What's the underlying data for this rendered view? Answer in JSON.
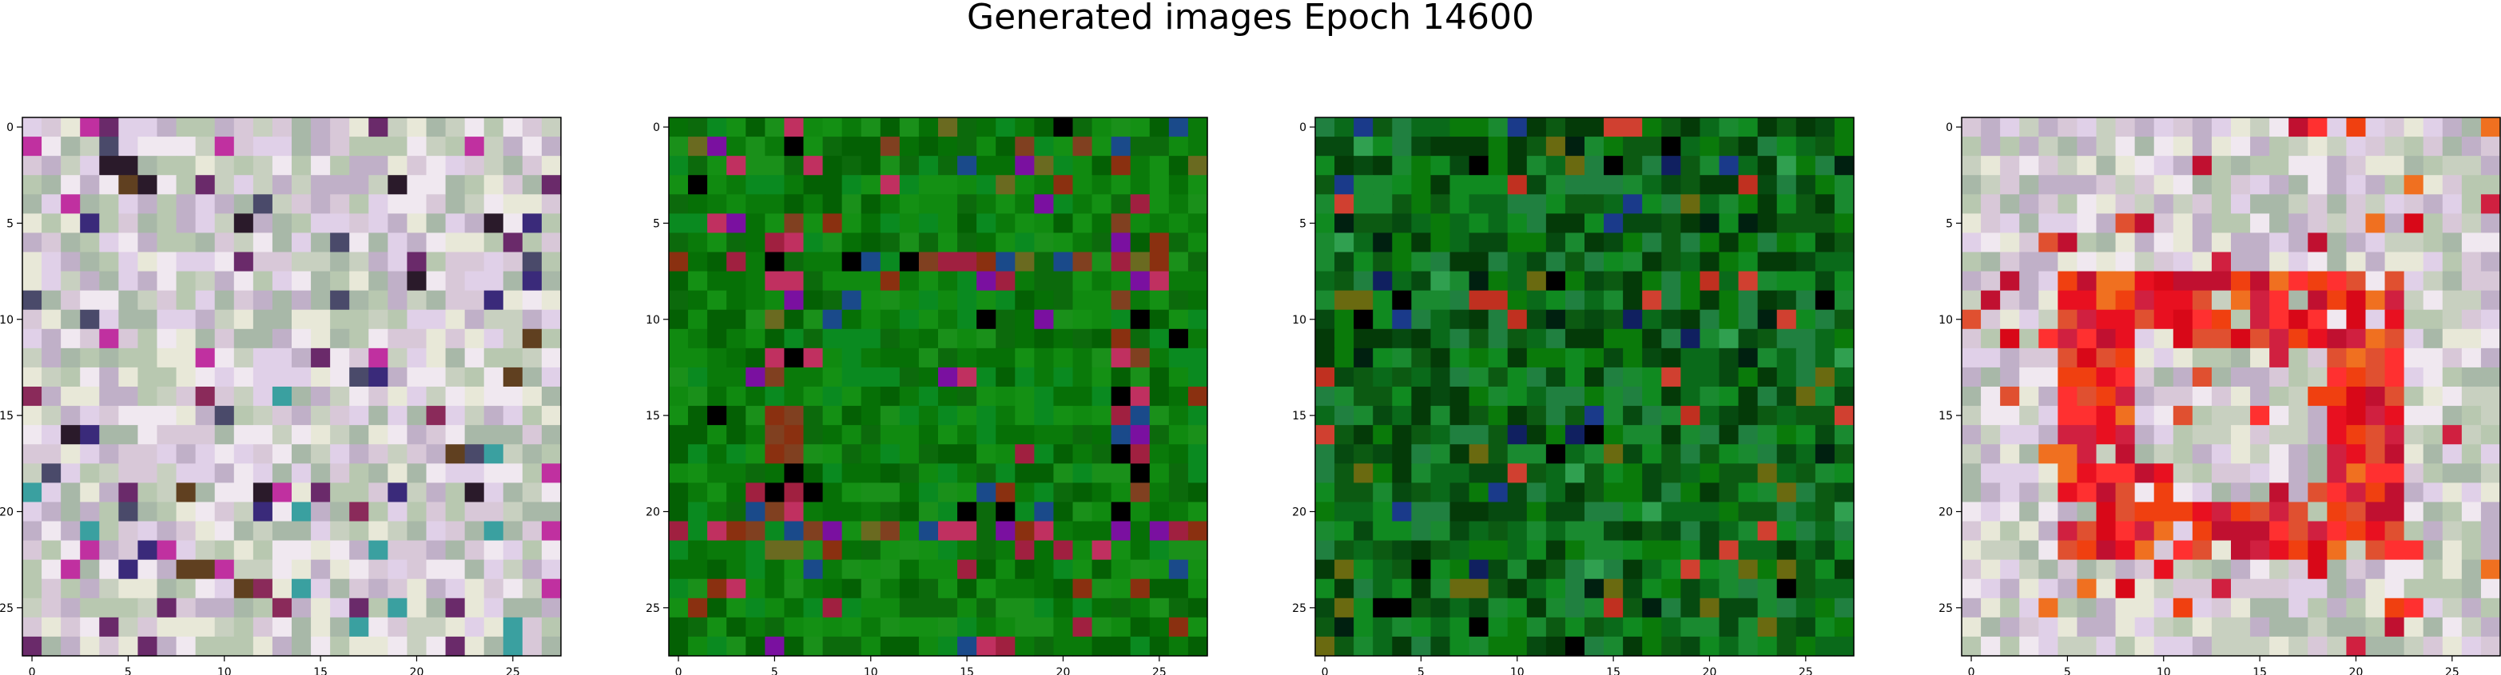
{
  "title": "Generated images Epoch 14600",
  "chart_data": [
    {
      "type": "heatmap",
      "description_kind": "rgb-image",
      "grid_size": [
        28,
        28
      ],
      "xlim": [
        -0.5,
        27.5
      ],
      "ylim": [
        27.5,
        -0.5
      ],
      "xticks": [
        0,
        5,
        10,
        15,
        20,
        25
      ],
      "yticks": [
        0,
        5,
        10,
        15,
        20,
        25
      ],
      "base_colors": [
        "#d8c8d8",
        "#c8d0c0",
        "#e0d0e8",
        "#b8c8b0",
        "#f0e8f0",
        "#c0b0c8",
        "#e8e8d8",
        "#a8b8a8"
      ],
      "accent_colors": [
        "#2a1a2a",
        "#6a2a6a",
        "#8a2a5a",
        "#3aa0a0",
        "#4a4a6a",
        "#c030a0",
        "#604020",
        "#3a2a7a"
      ],
      "frame": "none",
      "noise_seed": 11
    },
    {
      "type": "heatmap",
      "description_kind": "rgb-image",
      "grid_size": [
        28,
        28
      ],
      "xlim": [
        -0.5,
        27.5
      ],
      "ylim": [
        27.5,
        -0.5
      ],
      "xticks": [
        0,
        5,
        10,
        15,
        20,
        25
      ],
      "yticks": [
        0,
        5,
        10,
        15,
        20,
        25
      ],
      "base_colors": [
        "#0a7a0a",
        "#108a10",
        "#067006",
        "#1a901a",
        "#0c6a0c",
        "#149014",
        "#0a8a20",
        "#046004"
      ],
      "accent_colors": [
        "#8a3010",
        "#a02040",
        "#6a6a20",
        "#1a4a8a",
        "#000000",
        "#7a10a0",
        "#c03060",
        "#804020"
      ],
      "frame": "square",
      "noise_seed": 23
    },
    {
      "type": "heatmap",
      "description_kind": "rgb-image",
      "grid_size": [
        28,
        28
      ],
      "xlim": [
        -0.5,
        27.5
      ],
      "ylim": [
        27.5,
        -0.5
      ],
      "xticks": [
        0,
        5,
        10,
        15,
        20,
        25
      ],
      "yticks": [
        0,
        5,
        10,
        15,
        20,
        25
      ],
      "base_colors": [
        "#0a6a1a",
        "#108a20",
        "#064a10",
        "#1a8a30",
        "#0c5a12",
        "#208040",
        "#0a7a0a",
        "#043a08"
      ],
      "accent_colors": [
        "#000000",
        "#c03020",
        "#1a3a8a",
        "#6a6a10",
        "#30a050",
        "#002010",
        "#d04030",
        "#102060"
      ],
      "frame": "none",
      "noise_seed": 37
    },
    {
      "type": "heatmap",
      "description_kind": "rgb-image",
      "grid_size": [
        28,
        28
      ],
      "xlim": [
        -0.5,
        27.5
      ],
      "ylim": [
        27.5,
        -0.5
      ],
      "xticks": [
        0,
        5,
        10,
        15,
        20,
        25
      ],
      "yticks": [
        0,
        5,
        10,
        15,
        20,
        25
      ],
      "base_colors": [
        "#d8c8d8",
        "#c8d0c0",
        "#e0d0e8",
        "#b8c8b0",
        "#f0e8f0",
        "#c0b0c8",
        "#e8e8d8",
        "#a8b8a8"
      ],
      "accent_colors": [
        "#e81020",
        "#f04010",
        "#d02040",
        "#f07020",
        "#c01030",
        "#ff3030",
        "#e05030",
        "#d80818"
      ],
      "frame": "ring",
      "noise_seed": 53
    }
  ]
}
